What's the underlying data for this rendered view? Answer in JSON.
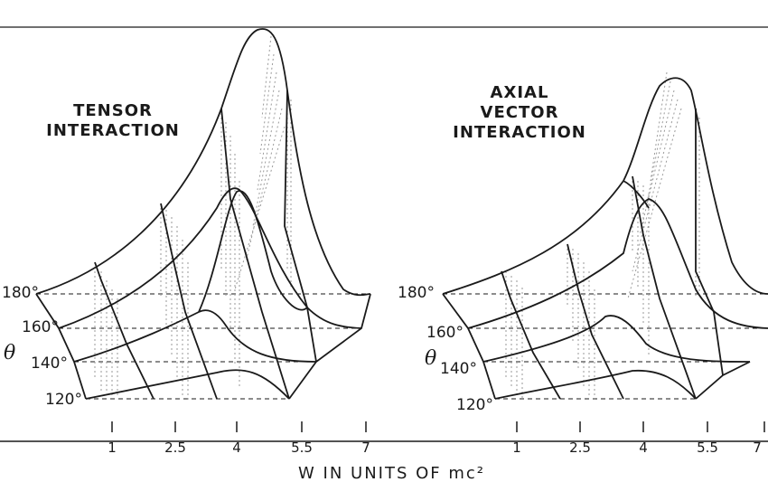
{
  "panels": [
    {
      "title_lines": [
        "TENSOR",
        "INTERACTION"
      ],
      "angle_labels": [
        "180°",
        "160°",
        "140°",
        "120°"
      ],
      "theta_label": "θ",
      "x_ticks": [
        "1",
        "2.5",
        "4",
        "5.5",
        "7"
      ]
    },
    {
      "title_lines": [
        "AXIAL",
        "VECTOR",
        "INTERACTION"
      ],
      "angle_labels": [
        "180°",
        "160°",
        "140°",
        "120°"
      ],
      "theta_label": "θ",
      "x_ticks": [
        "1",
        "2.5",
        "4",
        "5.5",
        "7"
      ]
    }
  ],
  "x_axis_label": "W IN UNITS OF mc²",
  "colors": {
    "ink": "#1a1a1a",
    "shade": "#9a9a9a"
  }
}
